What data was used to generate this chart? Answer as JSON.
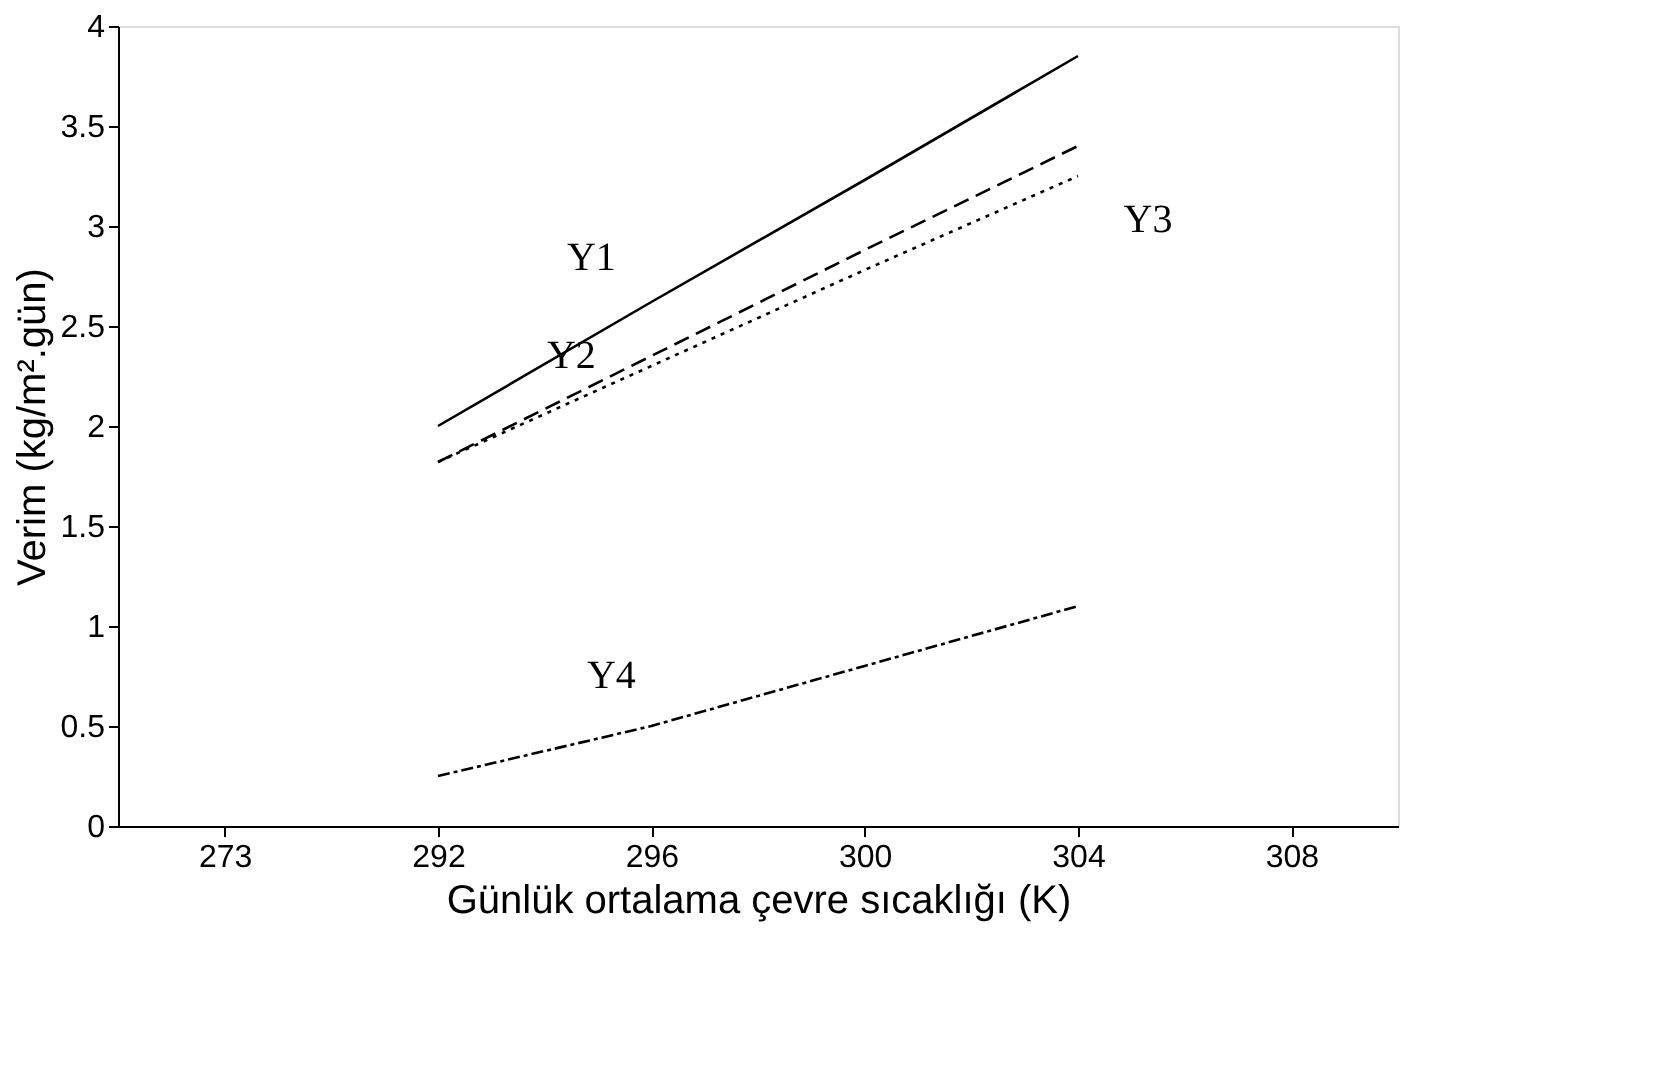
{
  "chart_data": {
    "type": "line",
    "xlabel": "Günlük ortalama çevre sıcaklığı (K)",
    "ylabel": "Verim (kg/m².gün)",
    "categories": [
      "273",
      "292",
      "296",
      "300",
      "304",
      "308"
    ],
    "series": [
      {
        "name": "Y1",
        "color": "#000000",
        "line_style": "solid",
        "values": [
          null,
          2.0,
          2.62,
          3.23,
          3.85,
          null
        ]
      },
      {
        "name": "Y2",
        "color": "#000000",
        "line_style": "dashed",
        "values": [
          null,
          1.82,
          2.35,
          2.88,
          3.4,
          null
        ]
      },
      {
        "name": "Y3",
        "color": "#000000",
        "line_style": "dotted",
        "values": [
          null,
          1.82,
          2.3,
          2.78,
          3.25,
          null
        ]
      },
      {
        "name": "Y4",
        "color": "#000000",
        "line_style": "dashdot",
        "values": [
          null,
          0.25,
          0.5,
          0.8,
          1.1,
          null
        ]
      }
    ],
    "ylim": [
      0,
      4
    ],
    "yticks": [
      0,
      0.5,
      1,
      1.5,
      2,
      2.5,
      3,
      3.5,
      4
    ],
    "grid": false,
    "marker": "none"
  }
}
